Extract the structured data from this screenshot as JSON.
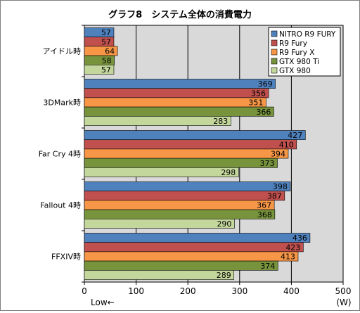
{
  "chart_data": {
    "type": "bar",
    "orientation": "horizontal",
    "title": "グラフ8　システム全体の消費電力",
    "categories": [
      "アイドル時",
      "3DMark時",
      "Far Cry 4時",
      "Fallout 4時",
      "FFXIV時"
    ],
    "series": [
      {
        "name": "NITRO R9 FURY",
        "color": "#4f81bd",
        "values": [
          57,
          369,
          427,
          398,
          436
        ]
      },
      {
        "name": "R9 Fury",
        "color": "#c0504d",
        "values": [
          57,
          356,
          410,
          387,
          423
        ]
      },
      {
        "name": "R9 Fury X",
        "color": "#f79646",
        "values": [
          64,
          351,
          394,
          367,
          413
        ]
      },
      {
        "name": "GTX 980 Ti",
        "color": "#77933c",
        "values": [
          58,
          366,
          373,
          368,
          374
        ]
      },
      {
        "name": "GTX 980",
        "color": "#c3d69b",
        "values": [
          57,
          283,
          298,
          290,
          289
        ]
      }
    ],
    "xlim": [
      0,
      500
    ],
    "xticks": [
      0,
      100,
      200,
      300,
      400,
      500
    ],
    "xlabel_low": "Low←",
    "xunit": "(W)",
    "grid": true,
    "legend_position": "top-right",
    "data_labels": true,
    "plot_bg": "#d9d9d9"
  }
}
